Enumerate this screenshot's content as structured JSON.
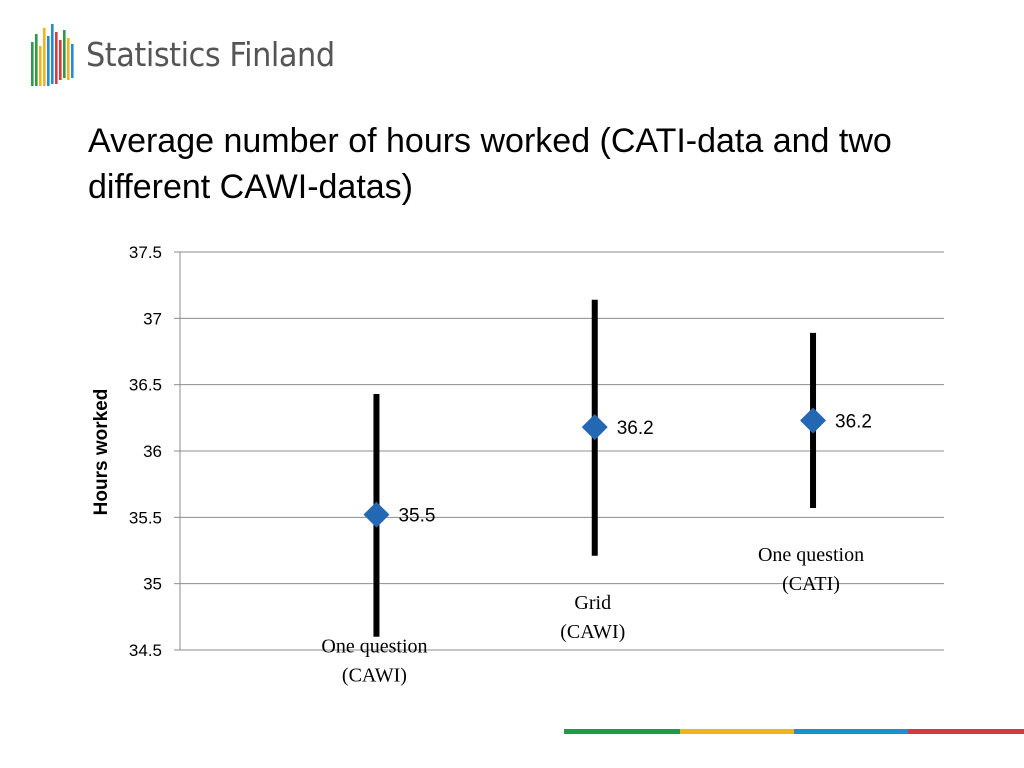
{
  "logo": {
    "text": "Statistics Finland",
    "colors": [
      "#2e9a48",
      "#f0b41e",
      "#1e8fd2",
      "#d63a3a"
    ]
  },
  "title": "Average number of hours worked (CATI-data and two different CAWI-datas)",
  "chart_data": {
    "type": "scatter",
    "subtype": "error-bar",
    "title": "",
    "xlabel": "",
    "ylabel": "Hours worked",
    "ylim": [
      34.5,
      37.5
    ],
    "yticks": [
      34.5,
      35,
      35.5,
      36,
      36.5,
      37,
      37.5
    ],
    "ytick_labels": [
      "34.5",
      "35",
      "35.5",
      "36",
      "36.5",
      "37",
      "37.5"
    ],
    "grid": true,
    "marker": "diamond",
    "marker_color": "#2468b4",
    "errorbar_color": "#000000",
    "points": [
      {
        "category_lines": [
          "One question",
          "(CAWI)"
        ],
        "value": 35.52,
        "value_label": "35.5",
        "low": 34.6,
        "high": 36.43
      },
      {
        "category_lines": [
          "Grid",
          "(CAWI)"
        ],
        "value": 36.18,
        "value_label": "36.2",
        "low": 35.21,
        "high": 37.14
      },
      {
        "category_lines": [
          "One question",
          "(CATI)"
        ],
        "value": 36.23,
        "value_label": "36.2",
        "low": 35.57,
        "high": 36.89
      }
    ]
  },
  "footer": {
    "colors": [
      "#1e9a48",
      "#f0b41e",
      "#1e8fd2",
      "#d63a3a"
    ]
  }
}
